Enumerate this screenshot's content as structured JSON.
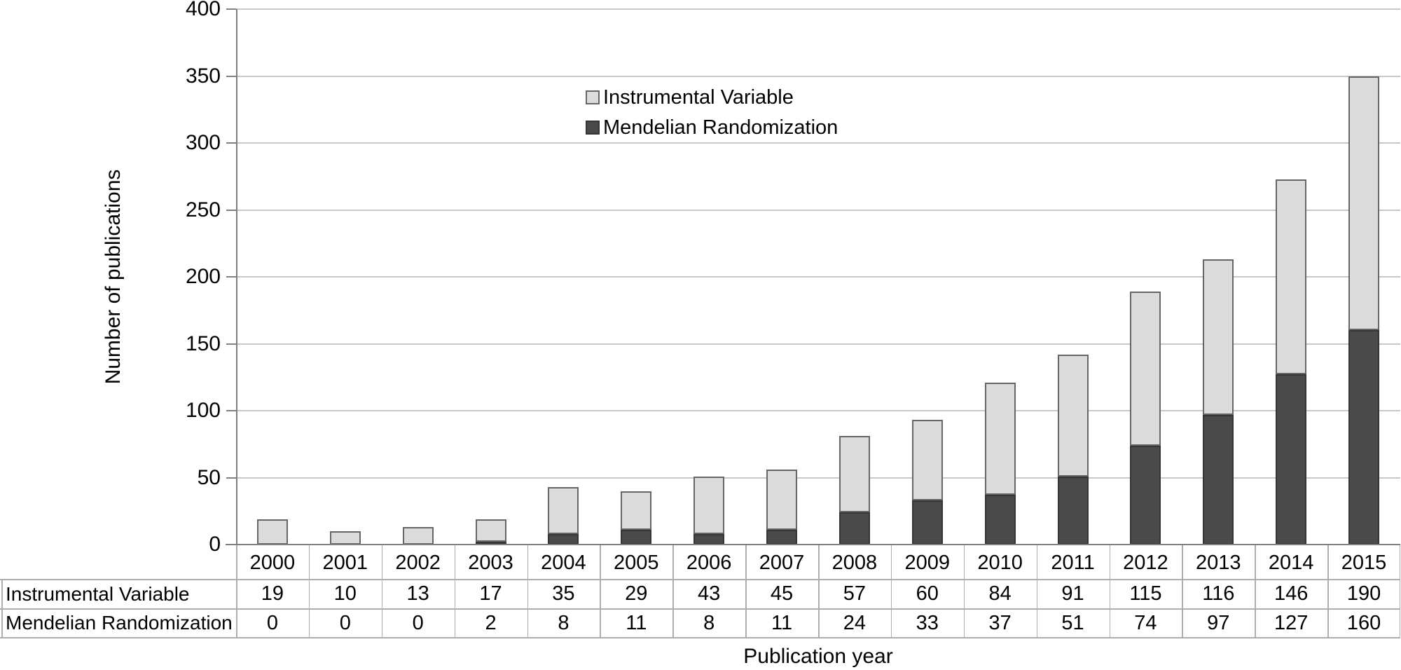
{
  "chart_data": {
    "type": "bar",
    "stacked": true,
    "title": "",
    "categories": [
      "2000",
      "2001",
      "2002",
      "2003",
      "2004",
      "2005",
      "2006",
      "2007",
      "2008",
      "2009",
      "2010",
      "2011",
      "2012",
      "2013",
      "2014",
      "2015"
    ],
    "series": [
      {
        "name": "Instrumental Variable",
        "color": "#dcdcdc",
        "border": "#666666",
        "values": [
          19,
          10,
          13,
          17,
          35,
          29,
          43,
          45,
          57,
          60,
          84,
          91,
          115,
          116,
          146,
          190
        ]
      },
      {
        "name": "Mendelian Randomization",
        "color": "#4a4a4a",
        "border": "#353535",
        "values": [
          0,
          0,
          0,
          2,
          8,
          11,
          8,
          11,
          24,
          33,
          37,
          51,
          74,
          97,
          127,
          160
        ]
      }
    ],
    "stack_order_bottom_to_top": [
      "Mendelian Randomization",
      "Instrumental Variable"
    ],
    "xlabel": "Publication year",
    "ylabel": "Number of publications",
    "ylim": [
      0,
      400
    ],
    "yticks": [
      0,
      50,
      100,
      150,
      200,
      250,
      300,
      350,
      400
    ],
    "grid": true,
    "legend_position": "top-center",
    "data_table": {
      "rows": [
        {
          "label": "Instrumental Variable",
          "values": [
            "19",
            "10",
            "13",
            "17",
            "35",
            "29",
            "43",
            "45",
            "57",
            "60",
            "84",
            "91",
            "115",
            "116",
            "146",
            "190"
          ]
        },
        {
          "label": "Mendelian Randomization",
          "values": [
            "0",
            "0",
            "0",
            "2",
            "8",
            "11",
            "8",
            "11",
            "24",
            "33",
            "37",
            "51",
            "74",
            "97",
            "127",
            "160"
          ]
        }
      ]
    }
  },
  "colors": {
    "gridline": "#c9c9c9",
    "axis": "#7f7f7f",
    "table_border": "#adadad",
    "text": "#000000",
    "background": "#ffffff"
  }
}
